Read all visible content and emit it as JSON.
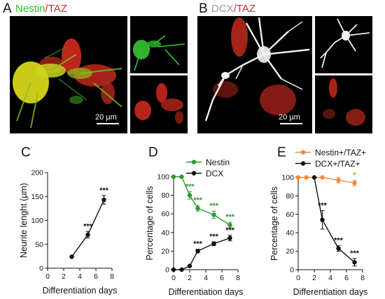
{
  "figure": {
    "panels": {
      "a": {
        "letter": "A",
        "t1": "Nestin",
        "t2": "/",
        "t3": "TAZ",
        "scale": "20 µm"
      },
      "b": {
        "letter": "B",
        "t1": "DCX",
        "t2": "/",
        "t3": "TAZ",
        "scale": "20 µm"
      },
      "c": {
        "letter": "C"
      },
      "d": {
        "letter": "D"
      },
      "e": {
        "letter": "E"
      }
    },
    "colors": {
      "green": "#2fbf2a",
      "red": "#e3262b",
      "gray": "#9a9a9a",
      "black": "#111111",
      "orange": "#f28a3a",
      "dgreen": "#2e9a30"
    }
  },
  "chart_data": [
    {
      "type": "line",
      "panel": "C",
      "xlabel": "Differentiation days",
      "ylabel": "Neurite lenght (µm)",
      "xlim": [
        0,
        8
      ],
      "ylim": [
        0,
        200
      ],
      "xticks": [
        0,
        2,
        4,
        6,
        8
      ],
      "yticks": [
        0,
        50,
        100,
        150,
        200
      ],
      "series": [
        {
          "color": "#111111",
          "x": [
            3,
            5,
            7
          ],
          "y": [
            24,
            70,
            143
          ],
          "err": [
            0,
            7,
            9
          ],
          "sig": [
            "",
            "***",
            "***"
          ]
        }
      ]
    },
    {
      "type": "line",
      "panel": "D",
      "xlabel": "Differentiation days",
      "ylabel": "Percentage of cells",
      "xlim": [
        0,
        8
      ],
      "ylim": [
        0,
        100
      ],
      "xticks": [
        0,
        2,
        4,
        6,
        8
      ],
      "yticks": [
        0,
        20,
        40,
        60,
        80,
        100
      ],
      "legend": "top-right",
      "series": [
        {
          "name": "Nestin",
          "color": "#2e9a30",
          "x": [
            0,
            1,
            2,
            3,
            5,
            7
          ],
          "y": [
            100,
            100,
            80,
            66,
            59,
            48
          ],
          "err": [
            0,
            0,
            4,
            3,
            4,
            3
          ],
          "sig": [
            "",
            "",
            "***",
            "***",
            "***",
            "***"
          ]
        },
        {
          "name": "DCX",
          "color": "#111111",
          "x": [
            0,
            1,
            2,
            3,
            5,
            7
          ],
          "y": [
            0,
            0,
            4,
            20,
            28,
            34
          ],
          "err": [
            0,
            0,
            0,
            2,
            2,
            3
          ],
          "sig": [
            "",
            "",
            "",
            "***",
            "***",
            "***"
          ]
        }
      ]
    },
    {
      "type": "line",
      "panel": "E",
      "xlabel": "Differentiation days",
      "ylabel": "Percentage of cells",
      "xlim": [
        0,
        8
      ],
      "ylim": [
        0,
        100
      ],
      "xticks": [
        0,
        2,
        4,
        6,
        8
      ],
      "yticks": [
        0,
        20,
        40,
        60,
        80,
        100
      ],
      "legend": "top-right",
      "series": [
        {
          "name": "Nestin+/TAZ+",
          "color": "#f28a3a",
          "x": [
            0,
            1,
            3,
            5,
            7
          ],
          "y": [
            100,
            100,
            100,
            97,
            94
          ],
          "err": [
            0,
            0,
            0,
            3,
            3
          ],
          "sig": [
            "",
            "",
            "",
            "",
            "*"
          ]
        },
        {
          "name": "DCX+/TAZ+",
          "color": "#111111",
          "x": [
            2,
            3,
            5,
            7
          ],
          "y": [
            100,
            54,
            23,
            8
          ],
          "err": [
            0,
            10,
            3,
            4
          ],
          "sig": [
            "",
            "***",
            "***",
            "***"
          ]
        }
      ]
    }
  ]
}
